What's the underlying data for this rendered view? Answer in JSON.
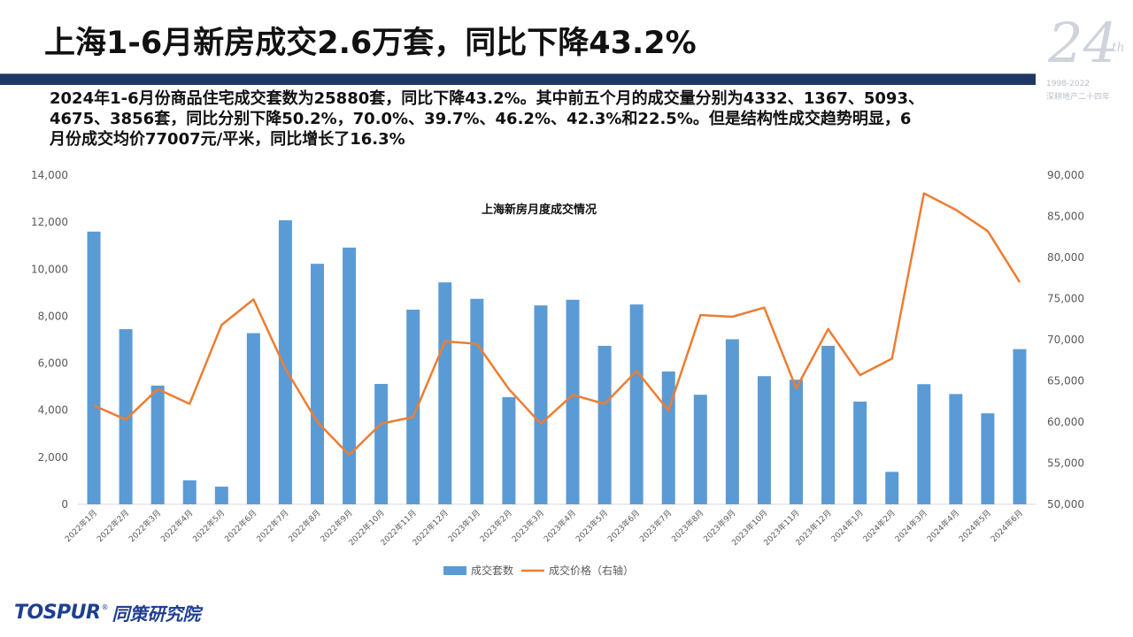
{
  "slide": {
    "title": "上海1-6月新房成交2.6万套，同比下降43.2%",
    "paragraph_lines": [
      "2024年1-6月份商品住宅成交套数为25880套，同比下降43.2%。其中前五个月的成交量分别为4332、1367、5093、",
      "4675、3856套，同比分别下降50.2%，70.0%、39.7%、46.2%、42.3%和22.5%。但是结构性成交趋势明显，6",
      "月份成交均价77007元/平米，同比增长了16.3%"
    ],
    "badge": {
      "number": "24",
      "suffix": "th",
      "years": "1998-2022",
      "subtitle": "深耕地产二十四年"
    },
    "logo": {
      "brand": "TOSPUR",
      "registered": "®",
      "name_cn": "同策研究院"
    },
    "colors": {
      "rule": "#1f3864",
      "bar": "#5b9bd5",
      "line": "#ed7d31",
      "brand": "#1f3f8f"
    }
  },
  "chart_data": {
    "type": "bar",
    "title": "上海新房月度成交情况",
    "categories": [
      "2022年1月",
      "2022年2月",
      "2022年3月",
      "2022年4月",
      "2022年5月",
      "2022年6月",
      "2022年7月",
      "2022年8月",
      "2022年9月",
      "2022年10月",
      "2022年11月",
      "2022年12月",
      "2023年1月",
      "2023年2月",
      "2023年3月",
      "2023年4月",
      "2023年5月",
      "2023年6月",
      "2023年7月",
      "2023年8月",
      "2023年9月",
      "2023年10月",
      "2023年11月",
      "2023年12月",
      "2024年1月",
      "2024年2月",
      "2024年3月",
      "2024年4月",
      "2024年5月",
      "2024年6月"
    ],
    "series": [
      {
        "name": "成交套数",
        "type": "bar",
        "axis": "left",
        "values": [
          11600,
          7450,
          5050,
          1020,
          750,
          7280,
          12080,
          10230,
          10920,
          5120,
          8280,
          9440,
          8740,
          4560,
          8460,
          8700,
          6740,
          8500,
          5650,
          4660,
          7020,
          5450,
          5300,
          6740,
          4370,
          1380,
          5110,
          4690,
          3870,
          6600
        ]
      },
      {
        "name": "成交价格（右轴）",
        "type": "line",
        "axis": "right",
        "values": [
          62000,
          60300,
          64000,
          62200,
          71800,
          74900,
          66500,
          60000,
          56000,
          59800,
          60600,
          69800,
          69500,
          64000,
          59800,
          63300,
          62200,
          66200,
          61400,
          73000,
          72800,
          73900,
          64100,
          71300,
          65700,
          67700,
          87800,
          85800,
          83200,
          77000
        ]
      }
    ],
    "y_left": {
      "min": 0,
      "max": 14000,
      "ticks": [
        "0",
        "2,000",
        "4,000",
        "6,000",
        "8,000",
        "10,000",
        "12,000",
        "14,000"
      ]
    },
    "y_right": {
      "min": 50000,
      "max": 90000,
      "ticks": [
        "50,000",
        "55,000",
        "60,000",
        "65,000",
        "70,000",
        "75,000",
        "80,000",
        "85,000",
        "90,000"
      ]
    },
    "grid": false,
    "legend_position": "bottom"
  }
}
